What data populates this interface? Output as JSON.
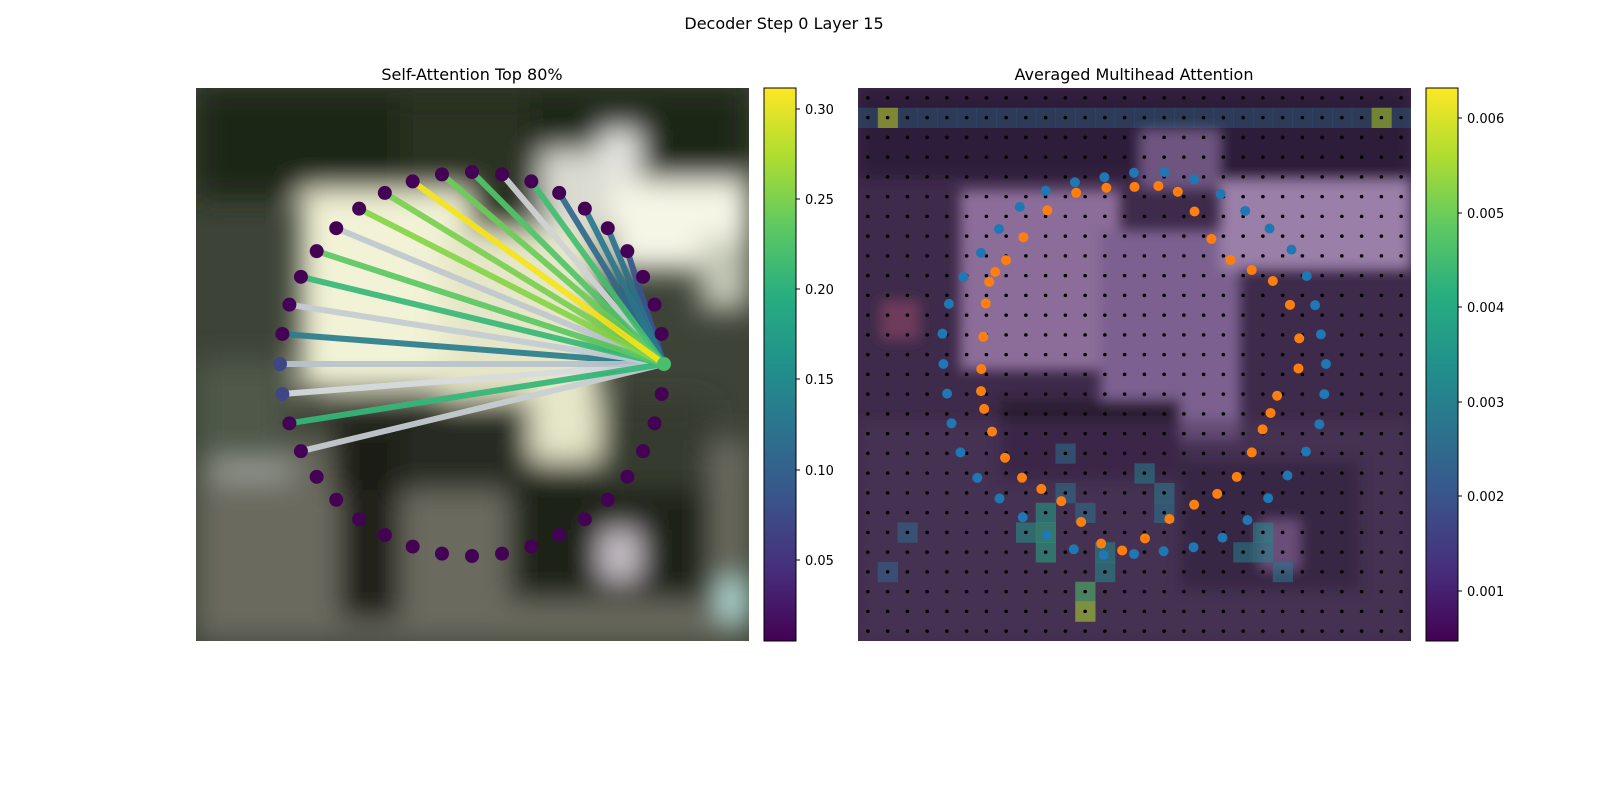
{
  "figure": {
    "title": "Decoder Step 0 Layer 15"
  },
  "left_panel": {
    "title": "Self-Attention Top 80%",
    "colorbar": {
      "ticks": [
        "0.05",
        "0.10",
        "0.15",
        "0.20",
        "0.25",
        "0.30"
      ]
    }
  },
  "right_panel": {
    "title": "Averaged Multihead Attention",
    "colorbar": {
      "ticks": [
        "0.001",
        "0.002",
        "0.003",
        "0.004",
        "0.005",
        "0.006"
      ]
    }
  },
  "chart_data": [
    {
      "type": "scatter",
      "subtype": "self-attention-circle",
      "title": "Self-Attention Top 80%",
      "background": "blurred street photo",
      "colormap": "viridis",
      "colorbar_range": [
        0.005,
        0.31
      ],
      "query_index": 0,
      "n_points": 40,
      "edge_weights": [
        0.3,
        0.26,
        0.25,
        0.24,
        0.23,
        0.22,
        0.2,
        0.19,
        0.16,
        0.14,
        0.14,
        0.13,
        0.12,
        0.11,
        0.1,
        0.08,
        0.07,
        0.07,
        0.06,
        0.05
      ],
      "edge_targets": [
        12,
        13,
        14,
        11,
        16,
        10,
        8,
        17,
        15,
        6,
        22,
        9,
        18,
        7,
        23,
        5,
        20,
        21,
        19,
        4
      ],
      "edge_colors": [
        "#f5e51c",
        "#7ad151",
        "#86d549",
        "#6ccd5a",
        "#5cc863",
        "#52c569",
        "#42be71",
        "#38b977",
        "#bfc8cf",
        "#2a788e",
        "#35b779",
        "#cfd4d6",
        "#c4cdd3",
        "#30698e",
        "#c9d0d4",
        "#2c728e",
        "#b8c4cc",
        "#d8dcde",
        "#2a7e8e",
        "#3a548c"
      ]
    },
    {
      "type": "heatmap",
      "title": "Averaged Multihead Attention",
      "grid": [
        28,
        28
      ],
      "colormap": "viridis",
      "colorbar_range": [
        0.0005,
        0.0063
      ],
      "hotspots": [
        {
          "row": 1,
          "col": 1,
          "value": 0.0058
        },
        {
          "row": 1,
          "col": 26,
          "value": 0.0056
        },
        {
          "row": 26,
          "col": 11,
          "value": 0.0056
        },
        {
          "row": 25,
          "col": 11,
          "value": 0.0047
        },
        {
          "row": 22,
          "col": 9,
          "value": 0.0042
        },
        {
          "row": 23,
          "col": 9,
          "value": 0.004
        },
        {
          "row": 21,
          "col": 9,
          "value": 0.0038
        },
        {
          "row": 22,
          "col": 8,
          "value": 0.0036
        },
        {
          "row": 23,
          "col": 12,
          "value": 0.0034
        },
        {
          "row": 24,
          "col": 12,
          "value": 0.0033
        },
        {
          "row": 22,
          "col": 20,
          "value": 0.0033
        },
        {
          "row": 23,
          "col": 19,
          "value": 0.003
        },
        {
          "row": 23,
          "col": 20,
          "value": 0.0031
        },
        {
          "row": 19,
          "col": 14,
          "value": 0.003
        },
        {
          "row": 20,
          "col": 15,
          "value": 0.0029
        },
        {
          "row": 24,
          "col": 21,
          "value": 0.0028
        },
        {
          "row": 21,
          "col": 15,
          "value": 0.0028
        },
        {
          "row": 20,
          "col": 10,
          "value": 0.0027
        },
        {
          "row": 21,
          "col": 11,
          "value": 0.0027
        },
        {
          "row": 18,
          "col": 10,
          "value": 0.0026
        },
        {
          "row": 22,
          "col": 2,
          "value": 0.0025
        },
        {
          "row": 24,
          "col": 1,
          "value": 0.0024
        }
      ],
      "blue_points": 40,
      "orange_points": 40
    }
  ]
}
